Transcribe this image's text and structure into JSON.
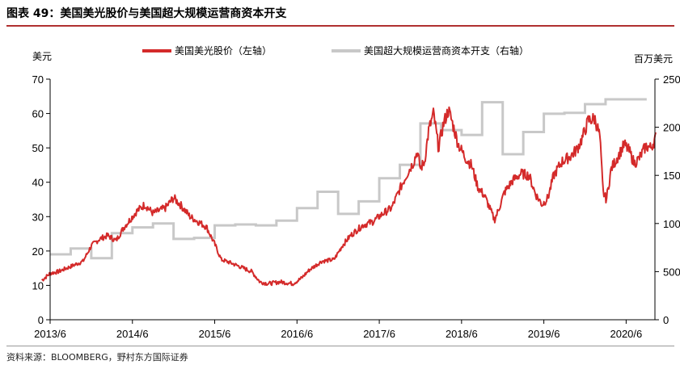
{
  "figure": {
    "title": "图表 49：美国美光股价与美国超大规模运营商资本开支",
    "source": "资料来源：BLOOMBERG，野村东方国际证券"
  },
  "chart_data": {
    "type": "line",
    "left_axis_unit": "美元",
    "right_axis_unit": "百万美元",
    "x_ticks": [
      "2013/6",
      "2014/6",
      "2015/6",
      "2016/6",
      "2017/6",
      "2018/6",
      "2019/6",
      "2020/6"
    ],
    "y_left": {
      "min": 0,
      "max": 70,
      "ticks": [
        0,
        10,
        20,
        30,
        40,
        50,
        60,
        70
      ]
    },
    "y_right": {
      "min": 0,
      "max": 2500,
      "ticks": [
        0,
        500,
        1000,
        1500,
        2000,
        2500
      ]
    },
    "legend_position": "top",
    "grid": false,
    "series": [
      {
        "name": "美国美光股价（左轴）",
        "axis": "left",
        "color": "#d42a2a",
        "style": "daily",
        "points": [
          [
            2013.4,
            11.5
          ],
          [
            2013.5,
            13.5
          ],
          [
            2013.6,
            14.0
          ],
          [
            2013.75,
            15.5
          ],
          [
            2013.9,
            17.0
          ],
          [
            2014.0,
            21.5
          ],
          [
            2014.1,
            23.5
          ],
          [
            2014.2,
            24.5
          ],
          [
            2014.3,
            23.0
          ],
          [
            2014.4,
            27.0
          ],
          [
            2014.55,
            31.5
          ],
          [
            2014.65,
            33.5
          ],
          [
            2014.75,
            31.0
          ],
          [
            2014.9,
            32.5
          ],
          [
            2015.0,
            35.5
          ],
          [
            2015.1,
            33.0
          ],
          [
            2015.2,
            30.0
          ],
          [
            2015.3,
            28.5
          ],
          [
            2015.4,
            27.0
          ],
          [
            2015.5,
            22.0
          ],
          [
            2015.58,
            17.5
          ],
          [
            2015.7,
            16.5
          ],
          [
            2015.85,
            15.0
          ],
          [
            2015.95,
            14.0
          ],
          [
            2016.05,
            11.0
          ],
          [
            2016.15,
            10.5
          ],
          [
            2016.3,
            11.0
          ],
          [
            2016.45,
            10.5
          ],
          [
            2016.55,
            12.0
          ],
          [
            2016.65,
            14.5
          ],
          [
            2016.8,
            17.0
          ],
          [
            2016.95,
            17.5
          ],
          [
            2017.05,
            21.5
          ],
          [
            2017.15,
            24.5
          ],
          [
            2017.3,
            27.5
          ],
          [
            2017.42,
            28.5
          ],
          [
            2017.55,
            31.0
          ],
          [
            2017.65,
            32.5
          ],
          [
            2017.75,
            38.0
          ],
          [
            2017.85,
            43.0
          ],
          [
            2017.92,
            46.0
          ],
          [
            2017.96,
            49.0
          ],
          [
            2018.0,
            44.0
          ],
          [
            2018.05,
            46.0
          ],
          [
            2018.1,
            55.0
          ],
          [
            2018.16,
            60.0
          ],
          [
            2018.22,
            50.0
          ],
          [
            2018.28,
            57.0
          ],
          [
            2018.34,
            61.0
          ],
          [
            2018.38,
            58.0
          ],
          [
            2018.46,
            51.0
          ],
          [
            2018.55,
            47.0
          ],
          [
            2018.62,
            45.0
          ],
          [
            2018.7,
            38.5
          ],
          [
            2018.78,
            36.0
          ],
          [
            2018.85,
            32.0
          ],
          [
            2018.9,
            29.0
          ],
          [
            2018.95,
            32.0
          ],
          [
            2019.02,
            37.0
          ],
          [
            2019.12,
            40.5
          ],
          [
            2019.22,
            42.5
          ],
          [
            2019.32,
            42.0
          ],
          [
            2019.4,
            36.5
          ],
          [
            2019.48,
            33.5
          ],
          [
            2019.55,
            35.5
          ],
          [
            2019.62,
            42.0
          ],
          [
            2019.72,
            46.0
          ],
          [
            2019.82,
            47.5
          ],
          [
            2019.9,
            49.5
          ],
          [
            2019.97,
            53.0
          ],
          [
            2020.04,
            58.0
          ],
          [
            2020.12,
            58.5
          ],
          [
            2020.18,
            53.5
          ],
          [
            2020.22,
            37.0
          ],
          [
            2020.26,
            35.0
          ],
          [
            2020.32,
            44.0
          ],
          [
            2020.4,
            47.5
          ],
          [
            2020.48,
            51.0
          ],
          [
            2020.54,
            49.0
          ],
          [
            2020.6,
            45.5
          ],
          [
            2020.66,
            47.0
          ],
          [
            2020.74,
            50.5
          ],
          [
            2020.8,
            50.0
          ],
          [
            2020.86,
            53.0
          ]
        ]
      },
      {
        "name": "美国超大规模运营商资本开支（右轴）",
        "axis": "right",
        "color": "#c8c8c8",
        "style": "step",
        "steps": [
          [
            2013.5,
            680
          ],
          [
            2013.75,
            740
          ],
          [
            2014.0,
            640
          ],
          [
            2014.25,
            900
          ],
          [
            2014.5,
            960
          ],
          [
            2014.75,
            1000
          ],
          [
            2015.0,
            840
          ],
          [
            2015.25,
            850
          ],
          [
            2015.5,
            980
          ],
          [
            2015.75,
            990
          ],
          [
            2016.0,
            980
          ],
          [
            2016.25,
            1030
          ],
          [
            2016.5,
            1160
          ],
          [
            2016.75,
            1330
          ],
          [
            2017.0,
            1100
          ],
          [
            2017.25,
            1230
          ],
          [
            2017.5,
            1470
          ],
          [
            2017.75,
            1610
          ],
          [
            2018.0,
            2040
          ],
          [
            2018.25,
            1970
          ],
          [
            2018.5,
            1920
          ],
          [
            2018.75,
            2260
          ],
          [
            2019.0,
            1720
          ],
          [
            2019.25,
            1950
          ],
          [
            2019.5,
            2140
          ],
          [
            2019.75,
            2150
          ],
          [
            2020.0,
            2240
          ],
          [
            2020.25,
            2290
          ],
          [
            2020.5,
            2290
          ]
        ]
      }
    ]
  }
}
